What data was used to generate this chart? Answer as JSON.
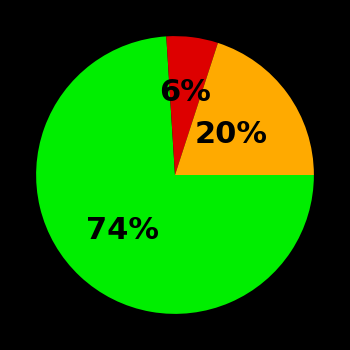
{
  "slices": [
    74,
    6,
    20
  ],
  "colors": [
    "#00ee00",
    "#dd0000",
    "#ffaa00"
  ],
  "labels": [
    "74%",
    "6%",
    "20%"
  ],
  "background_color": "#000000",
  "startangle": 0,
  "counterclock": false,
  "label_fontsize": 22,
  "label_fontweight": "bold",
  "label_radii": [
    0.55,
    0.6,
    0.5
  ]
}
